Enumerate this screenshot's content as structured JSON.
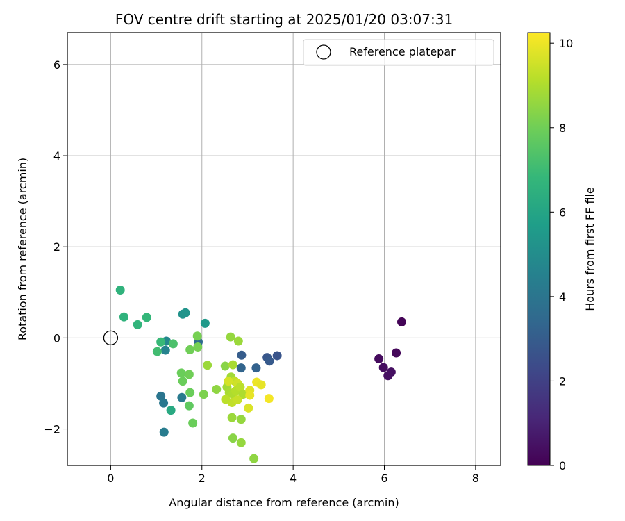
{
  "chart_data": {
    "type": "scatter",
    "title": "FOV centre drift starting at 2025/01/20 03:07:31",
    "xlabel": "Angular distance from reference (arcmin)",
    "ylabel": "Rotation from reference (arcmin)",
    "xlim": [
      -0.95,
      8.55
    ],
    "ylim": [
      -2.8,
      6.7
    ],
    "xticks": [
      0,
      2,
      4,
      6,
      8
    ],
    "yticks": [
      -2,
      0,
      2,
      4,
      6
    ],
    "grid": true,
    "legend": {
      "placement": "top-right",
      "entries": [
        "Reference platepar"
      ]
    },
    "reference_point": {
      "x": 0,
      "y": 0,
      "label": "Reference platepar"
    },
    "colorbar": {
      "label": "Hours from first FF file",
      "range": [
        0,
        10.25
      ],
      "ticks": [
        0,
        2,
        4,
        6,
        8,
        10
      ],
      "colormap": [
        "#440154",
        "#482878",
        "#3e4989",
        "#31688e",
        "#26828e",
        "#1f9e89",
        "#35b779",
        "#6ece58",
        "#b5de2b",
        "#fde725"
      ]
    },
    "points": [
      {
        "x": 6.38,
        "y": 0.35,
        "c": 0.1
      },
      {
        "x": 6.26,
        "y": -0.33,
        "c": 0.2
      },
      {
        "x": 5.88,
        "y": -0.46,
        "c": 0.3
      },
      {
        "x": 5.98,
        "y": -0.65,
        "c": 0.35
      },
      {
        "x": 6.15,
        "y": -0.75,
        "c": 0.4
      },
      {
        "x": 6.08,
        "y": -0.83,
        "c": 0.45
      },
      {
        "x": 3.65,
        "y": -0.39,
        "c": 2.7
      },
      {
        "x": 3.43,
        "y": -0.43,
        "c": 2.8
      },
      {
        "x": 3.48,
        "y": -0.51,
        "c": 2.9
      },
      {
        "x": 2.87,
        "y": -0.38,
        "c": 3.0
      },
      {
        "x": 3.19,
        "y": -0.66,
        "c": 3.2
      },
      {
        "x": 2.86,
        "y": -0.66,
        "c": 3.3
      },
      {
        "x": 1.92,
        "y": -0.09,
        "c": 3.6
      },
      {
        "x": 1.1,
        "y": -1.28,
        "c": 4.0
      },
      {
        "x": 1.16,
        "y": -1.43,
        "c": 4.1
      },
      {
        "x": 1.56,
        "y": -1.31,
        "c": 4.2
      },
      {
        "x": 1.17,
        "y": -2.07,
        "c": 4.3
      },
      {
        "x": 1.2,
        "y": -0.27,
        "c": 4.6
      },
      {
        "x": 1.22,
        "y": -0.07,
        "c": 4.8
      },
      {
        "x": 1.58,
        "y": 0.52,
        "c": 5.2
      },
      {
        "x": 1.64,
        "y": 0.55,
        "c": 5.3
      },
      {
        "x": 2.07,
        "y": 0.32,
        "c": 5.5
      },
      {
        "x": 0.21,
        "y": 1.05,
        "c": 6.6
      },
      {
        "x": 0.29,
        "y": 0.46,
        "c": 6.6
      },
      {
        "x": 0.59,
        "y": 0.29,
        "c": 6.7
      },
      {
        "x": 0.79,
        "y": 0.45,
        "c": 6.8
      },
      {
        "x": 1.1,
        "y": -0.09,
        "c": 6.9
      },
      {
        "x": 1.02,
        "y": -0.3,
        "c": 7.1
      },
      {
        "x": 1.37,
        "y": -0.13,
        "c": 7.3
      },
      {
        "x": 1.32,
        "y": -1.59,
        "c": 6.2
      },
      {
        "x": 1.72,
        "y": -1.49,
        "c": 7.7
      },
      {
        "x": 1.55,
        "y": -0.77,
        "c": 7.9
      },
      {
        "x": 1.58,
        "y": -0.95,
        "c": 7.9
      },
      {
        "x": 1.72,
        "y": -0.8,
        "c": 8.0
      },
      {
        "x": 1.74,
        "y": -1.2,
        "c": 7.9
      },
      {
        "x": 1.74,
        "y": -0.26,
        "c": 8.0
      },
      {
        "x": 1.9,
        "y": 0.04,
        "c": 8.1
      },
      {
        "x": 1.91,
        "y": -0.2,
        "c": 8.1
      },
      {
        "x": 1.8,
        "y": -1.87,
        "c": 7.9
      },
      {
        "x": 2.04,
        "y": -1.24,
        "c": 8.2
      },
      {
        "x": 2.12,
        "y": -0.6,
        "c": 8.7
      },
      {
        "x": 2.32,
        "y": -1.13,
        "c": 8.5
      },
      {
        "x": 2.51,
        "y": -0.62,
        "c": 8.4
      },
      {
        "x": 2.63,
        "y": 0.02,
        "c": 8.6
      },
      {
        "x": 2.8,
        "y": -0.07,
        "c": 8.7
      },
      {
        "x": 2.68,
        "y": -0.59,
        "c": 8.9
      },
      {
        "x": 2.64,
        "y": -0.86,
        "c": 8.8
      },
      {
        "x": 2.72,
        "y": -0.95,
        "c": 9.3
      },
      {
        "x": 2.78,
        "y": -1.0,
        "c": 9.5
      },
      {
        "x": 2.55,
        "y": -1.08,
        "c": 8.8
      },
      {
        "x": 2.6,
        "y": -1.2,
        "c": 8.9
      },
      {
        "x": 2.68,
        "y": -1.24,
        "c": 9.0
      },
      {
        "x": 2.74,
        "y": -1.16,
        "c": 9.1
      },
      {
        "x": 2.84,
        "y": -1.08,
        "c": 9.2
      },
      {
        "x": 2.9,
        "y": -1.24,
        "c": 9.0
      },
      {
        "x": 2.66,
        "y": -1.42,
        "c": 9.3
      },
      {
        "x": 2.78,
        "y": -1.36,
        "c": 9.4
      },
      {
        "x": 2.66,
        "y": -1.75,
        "c": 8.7
      },
      {
        "x": 2.86,
        "y": -1.79,
        "c": 8.6
      },
      {
        "x": 2.68,
        "y": -2.2,
        "c": 8.4
      },
      {
        "x": 2.86,
        "y": -2.3,
        "c": 8.6
      },
      {
        "x": 3.14,
        "y": -2.65,
        "c": 8.5
      },
      {
        "x": 3.02,
        "y": -1.54,
        "c": 9.7
      },
      {
        "x": 3.05,
        "y": -1.15,
        "c": 9.8
      },
      {
        "x": 3.05,
        "y": -1.26,
        "c": 9.9
      },
      {
        "x": 3.2,
        "y": -0.97,
        "c": 10.0
      },
      {
        "x": 3.3,
        "y": -1.03,
        "c": 9.9
      },
      {
        "x": 3.47,
        "y": -1.33,
        "c": 10.1
      },
      {
        "x": 2.52,
        "y": -1.35,
        "c": 9.2
      },
      {
        "x": 2.58,
        "y": -0.95,
        "c": 9.6
      }
    ]
  }
}
